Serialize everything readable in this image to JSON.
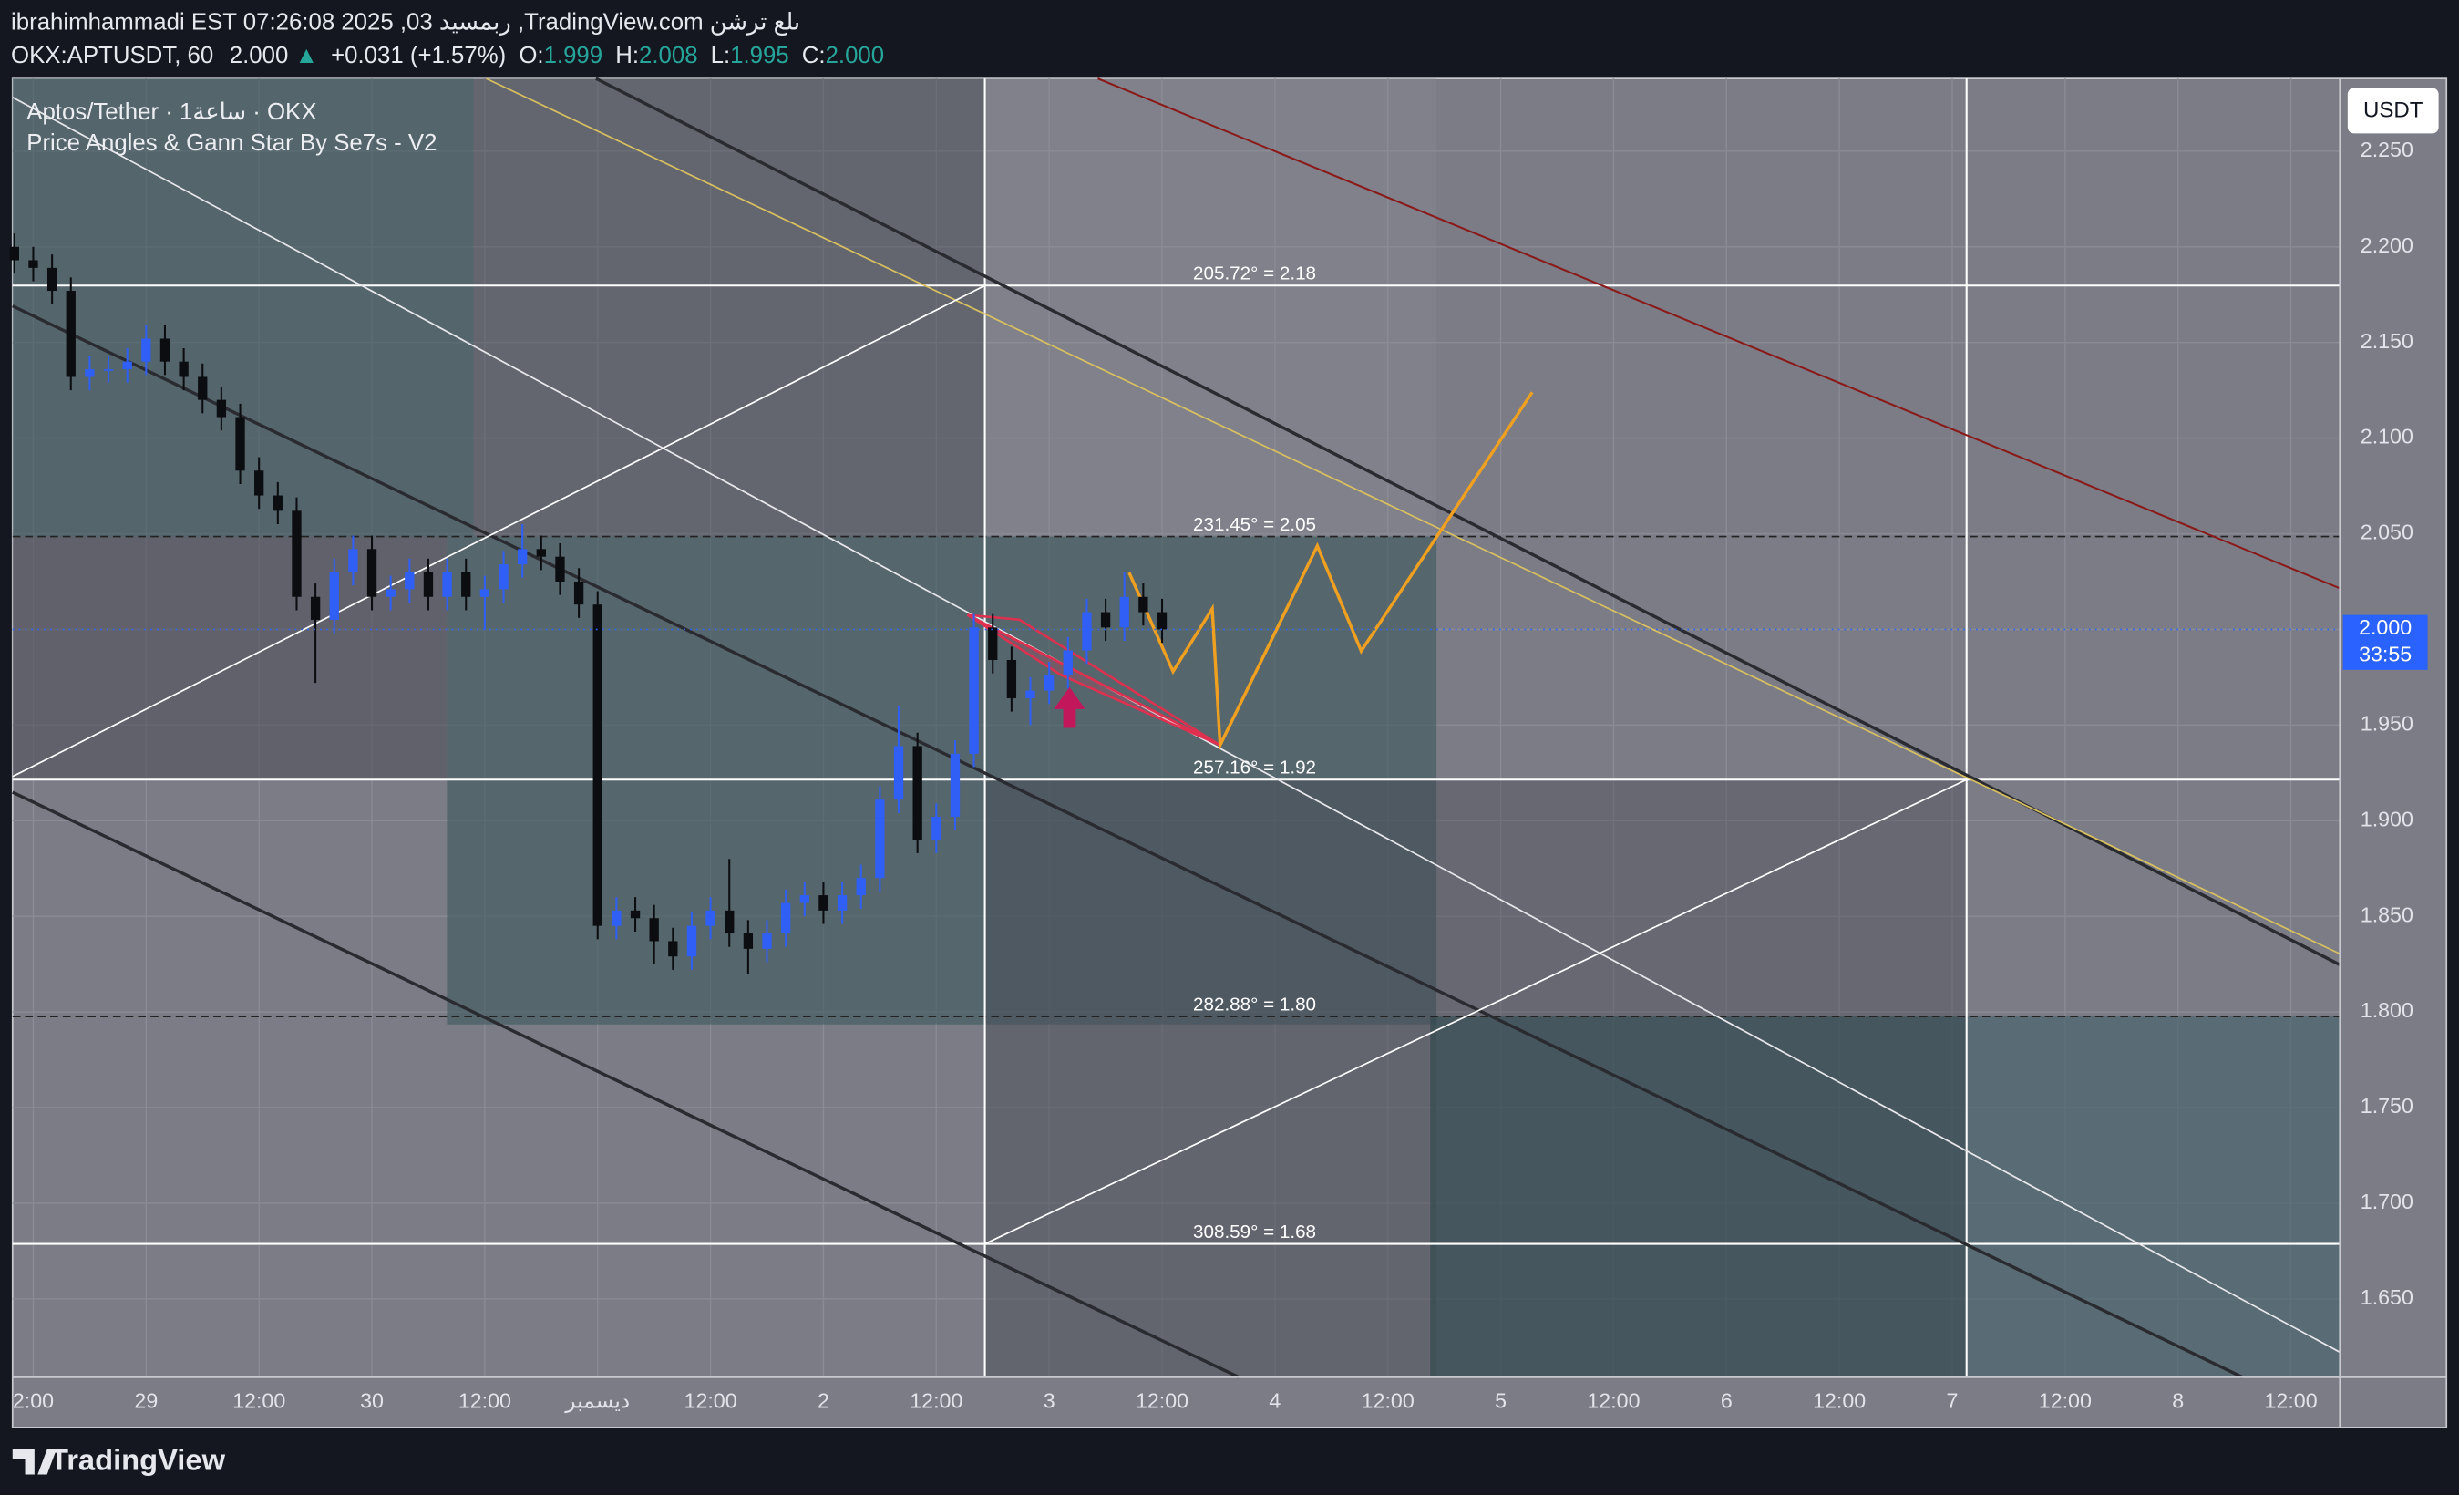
{
  "header": {
    "line1": "ibrahimhammadi EST 07:26:08 2025 ,03 ربمسيد ,TradingView.com ىلع ترشن",
    "symbol": "OKX:APTUSDT, 60",
    "last": "2.000",
    "change": "+0.031 (+1.57%)",
    "o_label": "O:",
    "o": "1.999",
    "h_label": "H:",
    "h": "2.008",
    "l_label": "L:",
    "l": "1.995",
    "c_label": "C:",
    "c": "2.000"
  },
  "legend": {
    "line1": "Aptos/Tether · 1ساعة · OKX",
    "line2": "Price Angles & Gann Star By Se7s - V2"
  },
  "currency_button": "USDT",
  "price_badge": {
    "price": "2.000",
    "countdown": "33:55"
  },
  "footer": {
    "brand": "TradingView"
  },
  "chart_data": {
    "type": "candlestick",
    "up_color": "#2f5ff5",
    "down_color": "#0c0d10",
    "grid": true,
    "annotations": [
      "205.72° = 2.18",
      "231.45° = 2.05",
      "257.16° = 1.92",
      "282.88° = 1.80",
      "308.59° = 1.68"
    ],
    "xlim": [
      9.8,
      257.2
    ],
    "xticks": [
      {
        "value": 12,
        "label": "2:00"
      },
      {
        "value": 24,
        "label": "29"
      },
      {
        "value": 36,
        "label": "12:00"
      },
      {
        "value": 48,
        "label": "30"
      },
      {
        "value": 60,
        "label": "12:00"
      },
      {
        "value": 72,
        "label": "ديسمبر"
      },
      {
        "value": 84,
        "label": "12:00"
      },
      {
        "value": 96,
        "label": "2"
      },
      {
        "value": 108,
        "label": "12:00"
      },
      {
        "value": 120,
        "label": "3"
      },
      {
        "value": 132,
        "label": "12:00"
      },
      {
        "value": 144,
        "label": "4"
      },
      {
        "value": 156,
        "label": "12:00"
      },
      {
        "value": 168,
        "label": "5"
      },
      {
        "value": 180,
        "label": "12:00"
      },
      {
        "value": 192,
        "label": "6"
      },
      {
        "value": 204,
        "label": "12:00"
      },
      {
        "value": 216,
        "label": "7"
      },
      {
        "value": 228,
        "label": "12:00"
      },
      {
        "value": 240,
        "label": "8"
      },
      {
        "value": 252,
        "label": "12:00"
      }
    ],
    "ylim": [
      1.609,
      2.288
    ],
    "yticks": [
      {
        "value": 1.65,
        "label": "1.650"
      },
      {
        "value": 1.7,
        "label": "1.700"
      },
      {
        "value": 1.75,
        "label": "1.750"
      },
      {
        "value": 1.8,
        "label": "1.800"
      },
      {
        "value": 1.85,
        "label": "1.850"
      },
      {
        "value": 1.9,
        "label": "1.900"
      },
      {
        "value": 1.95,
        "label": "1.950"
      },
      {
        "value": 2.0,
        "label": "2.000"
      },
      {
        "value": 2.05,
        "label": "2.050"
      },
      {
        "value": 2.1,
        "label": "2.100"
      },
      {
        "value": 2.15,
        "label": "2.150"
      },
      {
        "value": 2.2,
        "label": "2.200"
      },
      {
        "value": 2.25,
        "label": "2.250"
      }
    ],
    "x": [
      10,
      12,
      14,
      16,
      18,
      20,
      22,
      24,
      26,
      28,
      30,
      32,
      34,
      36,
      38,
      40,
      42,
      44,
      46,
      48,
      50,
      52,
      54,
      56,
      58,
      60,
      62,
      64,
      66,
      68,
      70,
      72,
      74,
      76,
      78,
      80,
      82,
      84,
      86,
      88,
      90,
      92,
      94,
      96,
      98,
      100,
      102,
      104,
      106,
      108,
      110,
      112,
      114,
      116,
      118,
      120,
      122,
      124,
      126,
      128,
      130,
      132
    ],
    "open": [
      2.2,
      2.193,
      2.189,
      2.177,
      2.132,
      2.136,
      2.136,
      2.14,
      2.152,
      2.14,
      2.132,
      2.12,
      2.111,
      2.083,
      2.07,
      2.062,
      2.017,
      2.005,
      2.03,
      2.042,
      2.017,
      2.021,
      2.03,
      2.017,
      2.03,
      2.017,
      2.021,
      2.034,
      2.042,
      2.038,
      2.025,
      2.013,
      1.845,
      1.853,
      1.849,
      1.837,
      1.829,
      1.845,
      1.853,
      1.841,
      1.833,
      1.841,
      1.857,
      1.861,
      1.853,
      1.861,
      1.87,
      1.911,
      1.939,
      1.89,
      1.902,
      1.935,
      2.001,
      1.984,
      1.964,
      1.968,
      1.976,
      1.989,
      2.009,
      2.001,
      2.017,
      2.009
    ],
    "high": [
      2.207,
      2.2,
      2.196,
      2.184,
      2.143,
      2.143,
      2.147,
      2.159,
      2.159,
      2.147,
      2.139,
      2.127,
      2.118,
      2.09,
      2.077,
      2.069,
      2.024,
      2.037,
      2.049,
      2.049,
      2.028,
      2.037,
      2.037,
      2.037,
      2.037,
      2.028,
      2.041,
      2.055,
      2.049,
      2.045,
      2.032,
      2.02,
      1.86,
      1.86,
      1.856,
      1.844,
      1.852,
      1.86,
      1.88,
      1.848,
      1.848,
      1.864,
      1.868,
      1.868,
      1.868,
      1.877,
      1.918,
      1.96,
      1.946,
      1.909,
      1.942,
      2.008,
      2.008,
      1.991,
      1.975,
      1.983,
      1.996,
      2.016,
      2.016,
      2.03,
      2.024,
      2.016
    ],
    "low": [
      2.186,
      2.182,
      2.17,
      2.125,
      2.125,
      2.129,
      2.129,
      2.133,
      2.133,
      2.125,
      2.113,
      2.104,
      2.076,
      2.063,
      2.055,
      2.01,
      1.972,
      1.998,
      2.023,
      2.01,
      2.01,
      2.014,
      2.01,
      2.01,
      2.01,
      2.0,
      2.014,
      2.027,
      2.031,
      2.018,
      2.006,
      1.838,
      1.838,
      1.842,
      1.825,
      1.822,
      1.822,
      1.838,
      1.834,
      1.82,
      1.826,
      1.834,
      1.85,
      1.846,
      1.846,
      1.854,
      1.863,
      1.904,
      1.883,
      1.883,
      1.895,
      1.928,
      1.977,
      1.957,
      1.95,
      1.961,
      1.969,
      1.982,
      1.994,
      1.994,
      2.002,
      1.993
    ],
    "close": [
      2.193,
      2.189,
      2.177,
      2.132,
      2.136,
      2.136,
      2.14,
      2.152,
      2.14,
      2.132,
      2.12,
      2.111,
      2.083,
      2.07,
      2.062,
      2.017,
      2.005,
      2.03,
      2.042,
      2.017,
      2.021,
      2.03,
      2.017,
      2.03,
      2.017,
      2.021,
      2.034,
      2.042,
      2.038,
      2.025,
      2.013,
      1.845,
      1.853,
      1.849,
      1.837,
      1.829,
      1.845,
      1.853,
      1.841,
      1.833,
      1.841,
      1.857,
      1.861,
      1.853,
      1.861,
      1.87,
      1.911,
      1.939,
      1.89,
      1.902,
      1.935,
      2.001,
      1.984,
      1.964,
      1.968,
      1.976,
      1.989,
      2.009,
      2.001,
      2.017,
      2.009,
      2.0
    ]
  }
}
